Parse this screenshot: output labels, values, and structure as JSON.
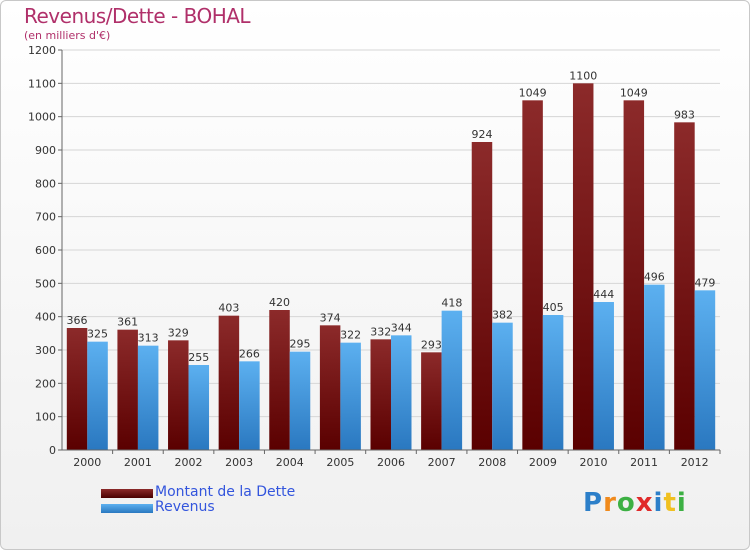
{
  "header": {
    "title": "Revenus/Dette - BOHAL",
    "subtitle": "(en milliers d'€)"
  },
  "legend": {
    "items": [
      {
        "label": "Montant de la Dette",
        "color": "#6b0a0a"
      },
      {
        "label": "Revenus",
        "color": "#3d8fd6"
      }
    ]
  },
  "logo": {
    "text": "Proxiti",
    "letters": [
      "P",
      "r",
      "o",
      "x",
      "i",
      "t",
      "i"
    ],
    "colors": [
      "#2c7fc9",
      "#f08a1c",
      "#3cb043",
      "#e02a2a",
      "#2c7fc9",
      "#f0c020",
      "#3cb043"
    ]
  },
  "chart_data": {
    "type": "bar",
    "title": "Revenus/Dette - BOHAL",
    "subtitle": "(en milliers d'€)",
    "categories": [
      "2000",
      "2001",
      "2002",
      "2003",
      "2004",
      "2005",
      "2006",
      "2007",
      "2008",
      "2009",
      "2010",
      "2011",
      "2012"
    ],
    "series": [
      {
        "name": "Montant de la Dette",
        "color": "#6b0a0a",
        "values": [
          366,
          361,
          329,
          403,
          420,
          374,
          332,
          293,
          924,
          1049,
          1100,
          1049,
          983
        ]
      },
      {
        "name": "Revenus",
        "color": "#3d8fd6",
        "values": [
          325,
          313,
          255,
          266,
          295,
          322,
          344,
          418,
          382,
          405,
          444,
          496,
          479
        ]
      }
    ],
    "ylim": [
      0,
      1200
    ],
    "yticks": [
      0,
      100,
      200,
      300,
      400,
      500,
      600,
      700,
      800,
      900,
      1000,
      1100,
      1200
    ],
    "grid": true,
    "legend_position": "bottom-left"
  }
}
